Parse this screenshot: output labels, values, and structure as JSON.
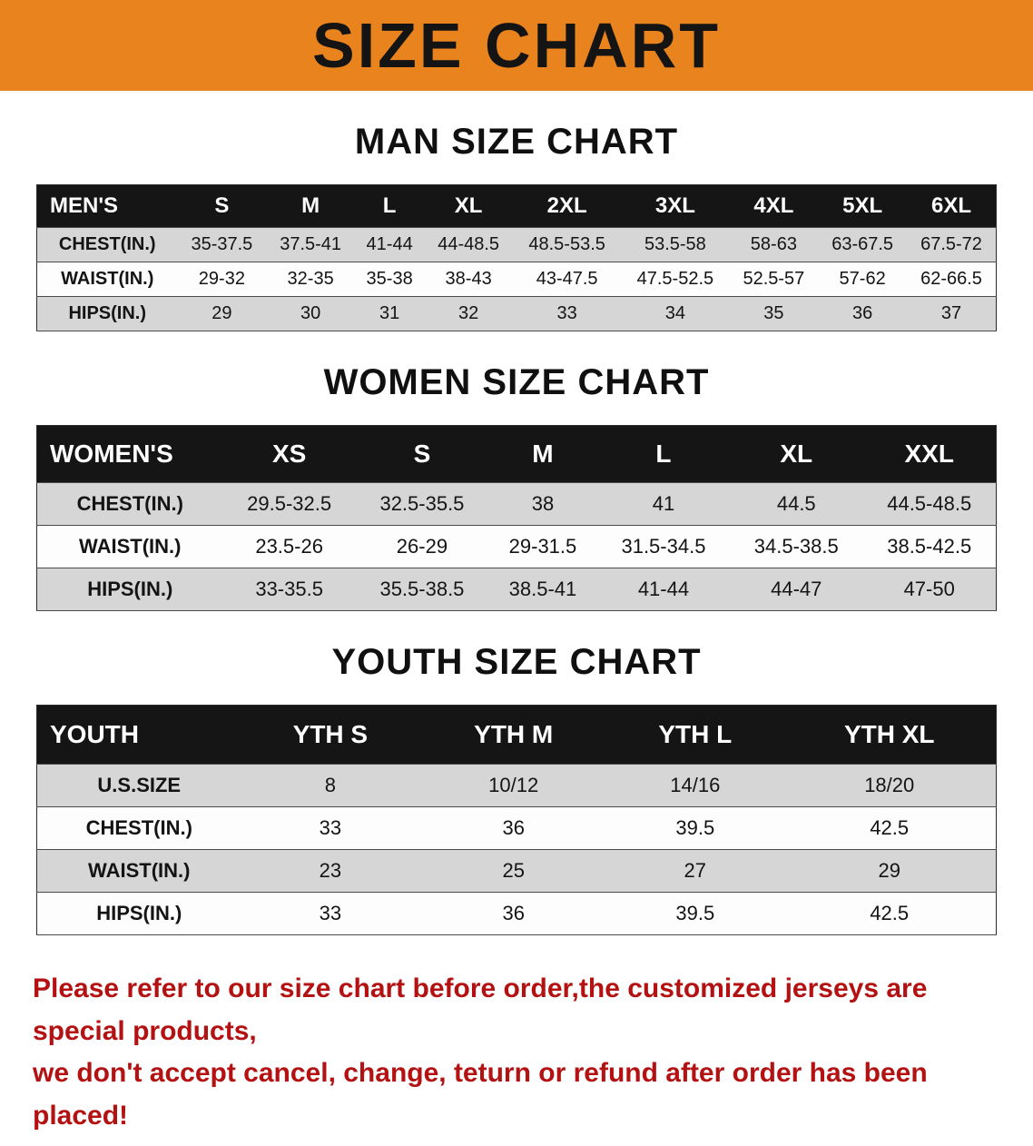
{
  "banner": {
    "title": "SIZE CHART"
  },
  "men": {
    "heading": "MAN SIZE CHART",
    "table": {
      "header": [
        "MEN'S",
        "S",
        "M",
        "L",
        "XL",
        "2XL",
        "3XL",
        "4XL",
        "5XL",
        "6XL"
      ],
      "rows": [
        [
          "CHEST(IN.)",
          "35-37.5",
          "37.5-41",
          "41-44",
          "44-48.5",
          "48.5-53.5",
          "53.5-58",
          "58-63",
          "63-67.5",
          "67.5-72"
        ],
        [
          "WAIST(IN.)",
          "29-32",
          "32-35",
          "35-38",
          "38-43",
          "43-47.5",
          "47.5-52.5",
          "52.5-57",
          "57-62",
          "62-66.5"
        ],
        [
          "HIPS(IN.)",
          "29",
          "30",
          "31",
          "32",
          "33",
          "34",
          "35",
          "36",
          "37"
        ]
      ]
    }
  },
  "women": {
    "heading": "WOMEN SIZE CHART",
    "table": {
      "header": [
        "WOMEN'S",
        "XS",
        "S",
        "M",
        "L",
        "XL",
        "XXL"
      ],
      "rows": [
        [
          "CHEST(IN.)",
          "29.5-32.5",
          "32.5-35.5",
          "38",
          "41",
          "44.5",
          "44.5-48.5"
        ],
        [
          "WAIST(IN.)",
          "23.5-26",
          "26-29",
          "29-31.5",
          "31.5-34.5",
          "34.5-38.5",
          "38.5-42.5"
        ],
        [
          "HIPS(IN.)",
          "33-35.5",
          "35.5-38.5",
          "38.5-41",
          "41-44",
          "44-47",
          "47-50"
        ]
      ]
    }
  },
  "youth": {
    "heading": "YOUTH SIZE CHART",
    "table": {
      "header": [
        "YOUTH",
        "YTH S",
        "YTH M",
        "YTH L",
        "YTH XL"
      ],
      "rows": [
        [
          "U.S.SIZE",
          "8",
          "10/12",
          "14/16",
          "18/20"
        ],
        [
          "CHEST(IN.)",
          "33",
          "36",
          "39.5",
          "42.5"
        ],
        [
          "WAIST(IN.)",
          "23",
          "25",
          "27",
          "29"
        ],
        [
          "HIPS(IN.)",
          "33",
          "36",
          "39.5",
          "42.5"
        ]
      ]
    }
  },
  "disclaimer": {
    "line1": "Please refer to our size chart before order,the customized jerseys are special products,",
    "line2": "we don't accept cancel, change, teturn or refund after order has been placed!"
  },
  "colors": {
    "banner_bg": "#E8831D",
    "header_bg": "#151515",
    "stripe": "#d6d6d6",
    "disclaimer_text": "#b41212"
  }
}
